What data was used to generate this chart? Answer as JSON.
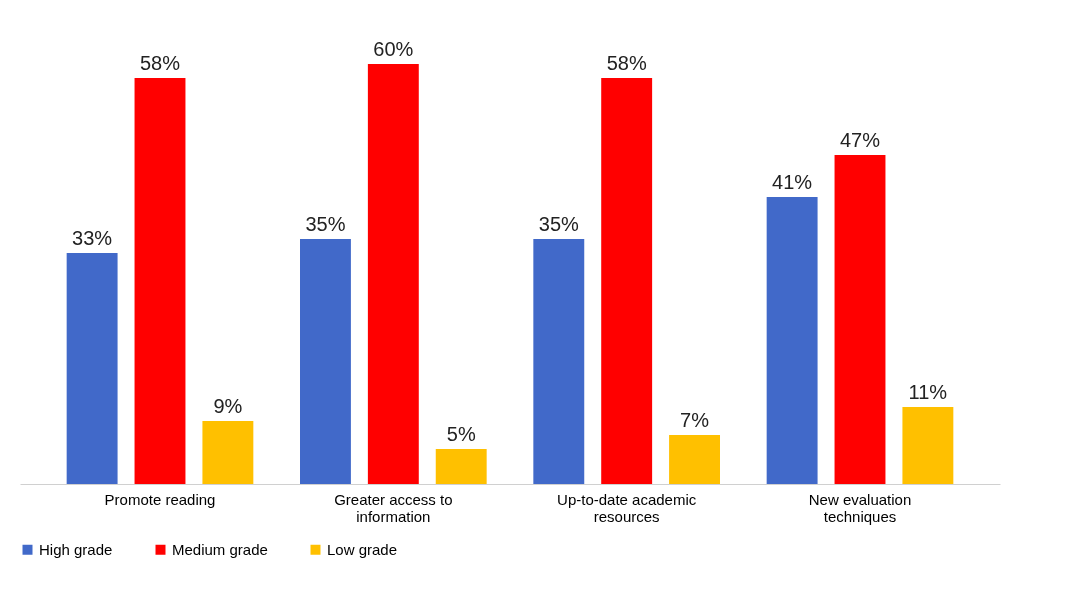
{
  "chart_data": {
    "type": "bar",
    "categories": [
      "Promote reading",
      "Greater access to information",
      "Up-to-date academic resources",
      "New evaluation techniques"
    ],
    "series": [
      {
        "name": "High grade",
        "color": "#4169c9",
        "values": [
          33,
          35,
          35,
          41
        ],
        "value_labels": [
          "33%",
          "35%",
          "35%",
          "41%"
        ]
      },
      {
        "name": "Medium grade",
        "color": "#ff0000",
        "values": [
          58,
          60,
          58,
          47
        ],
        "value_labels": [
          "58%",
          "60%",
          "58%",
          "47%"
        ]
      },
      {
        "name": "Low grade",
        "color": "#ffc000",
        "values": [
          9,
          5,
          7,
          11
        ],
        "value_labels": [
          "9%",
          "5%",
          "7%",
          "11%"
        ]
      }
    ],
    "legend": "bottom",
    "grid": false
  }
}
